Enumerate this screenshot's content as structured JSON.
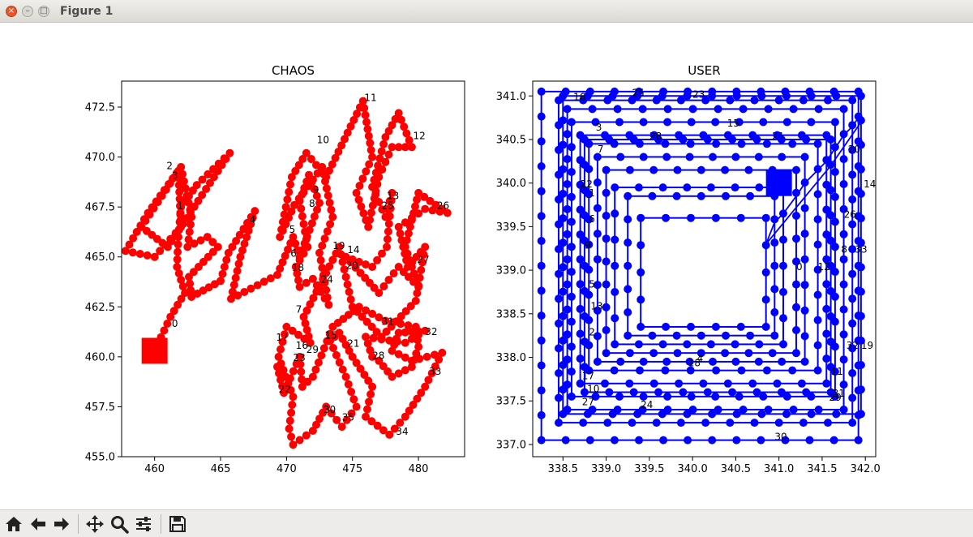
{
  "window": {
    "title": "Figure 1"
  },
  "toolbar": {
    "buttons": [
      {
        "name": "home-button",
        "icon": "home-icon"
      },
      {
        "name": "back-button",
        "icon": "arrow-left-icon"
      },
      {
        "name": "forward-button",
        "icon": "arrow-right-icon"
      },
      {
        "name": "pan-button",
        "icon": "move-icon"
      },
      {
        "name": "zoom-button",
        "icon": "magnifier-icon"
      },
      {
        "name": "configure-subplots-button",
        "icon": "sliders-icon"
      },
      {
        "name": "save-button",
        "icon": "floppy-disk-icon"
      }
    ]
  },
  "chart_data": [
    {
      "type": "line",
      "title": "CHAOS",
      "xlim": [
        457.5,
        483.5
      ],
      "ylim": [
        455.0,
        473.8
      ],
      "xticks": [
        "460",
        "465",
        "470",
        "475",
        "480"
      ],
      "yticks": [
        "455.0",
        "457.5",
        "460.0",
        "462.5",
        "465.0",
        "467.5",
        "470.0",
        "472.5"
      ],
      "color": "#ff0000",
      "marker": "circle",
      "start_marker": "square",
      "start": [
        460.0,
        460.3
      ],
      "path": [
        [
          460.0,
          460.3
        ],
        [
          461.2,
          462.0
        ],
        [
          462.3,
          463.2
        ],
        [
          461.7,
          464.5
        ],
        [
          461.8,
          466.0
        ],
        [
          462.0,
          467.5
        ],
        [
          463.2,
          468.6
        ],
        [
          465.7,
          470.2
        ],
        [
          463.3,
          467.8
        ],
        [
          461.0,
          465.5
        ],
        [
          459.0,
          466.5
        ],
        [
          461.8,
          469.3
        ],
        [
          462.0,
          466.5
        ],
        [
          460.0,
          465.0
        ],
        [
          457.8,
          465.3
        ],
        [
          459.5,
          467.2
        ],
        [
          462.0,
          469.5
        ],
        [
          462.8,
          467.0
        ],
        [
          462.5,
          465.5
        ],
        [
          464.0,
          466.0
        ],
        [
          464.8,
          465.5
        ],
        [
          462.6,
          464.0
        ],
        [
          462.8,
          463.0
        ],
        [
          465.0,
          463.8
        ],
        [
          465.6,
          465.2
        ],
        [
          467.6,
          467.3
        ],
        [
          466.5,
          465.0
        ],
        [
          465.8,
          462.9
        ],
        [
          469.3,
          464.1
        ],
        [
          470.5,
          466.0
        ],
        [
          471.0,
          465.0
        ],
        [
          472.5,
          467.7
        ],
        [
          471.7,
          469.1
        ],
        [
          471.0,
          467.8
        ],
        [
          471.6,
          465.5
        ],
        [
          470.7,
          464.5
        ],
        [
          471.0,
          463.5
        ],
        [
          472.0,
          463.9
        ],
        [
          473.2,
          462.6
        ],
        [
          472.5,
          465.2
        ],
        [
          473.5,
          467.0
        ],
        [
          472.7,
          469.5
        ],
        [
          470.6,
          467.6
        ],
        [
          469.5,
          466.0
        ],
        [
          470.4,
          469.0
        ],
        [
          471.5,
          470.2
        ],
        [
          473.0,
          469.0
        ],
        [
          475.8,
          472.8
        ],
        [
          476.5,
          470.0
        ],
        [
          475.3,
          468.2
        ],
        [
          476.2,
          466.5
        ],
        [
          477.0,
          469.0
        ],
        [
          478.0,
          470.5
        ],
        [
          479.5,
          470.5
        ],
        [
          478.5,
          472.2
        ],
        [
          477.5,
          471.0
        ],
        [
          476.5,
          468.5
        ],
        [
          477.5,
          467.0
        ],
        [
          478.0,
          468.2
        ],
        [
          477.6,
          465.5
        ],
        [
          476.5,
          464.5
        ],
        [
          474.5,
          465.0
        ],
        [
          475.6,
          464.2
        ],
        [
          477.0,
          463.2
        ],
        [
          478.5,
          464.5
        ],
        [
          480.0,
          463.5
        ],
        [
          479.0,
          465.5
        ],
        [
          480.0,
          468.2
        ],
        [
          482.2,
          467.2
        ],
        [
          480.5,
          467.4
        ],
        [
          478.5,
          466.5
        ],
        [
          479.2,
          464.5
        ],
        [
          480.5,
          465.5
        ],
        [
          479.8,
          462.8
        ],
        [
          477.2,
          461.0
        ],
        [
          475.0,
          462.5
        ],
        [
          474.0,
          465.5
        ],
        [
          473.0,
          464.2
        ],
        [
          471.3,
          462.0
        ],
        [
          471.8,
          460.7
        ],
        [
          470.0,
          461.5
        ],
        [
          469.4,
          460.0
        ],
        [
          470.5,
          458.0
        ],
        [
          470.2,
          456.4
        ],
        [
          470.5,
          455.6
        ],
        [
          472.0,
          456.3
        ],
        [
          473.0,
          457.5
        ],
        [
          474.2,
          456.5
        ],
        [
          475.3,
          457.5
        ],
        [
          474.5,
          459.0
        ],
        [
          473.3,
          460.8
        ],
        [
          474.0,
          461.2
        ],
        [
          475.0,
          460.0
        ],
        [
          476.5,
          458.5
        ],
        [
          476.0,
          457.0
        ],
        [
          477.8,
          456.1
        ],
        [
          479.0,
          457.0
        ],
        [
          480.5,
          458.5
        ],
        [
          481.8,
          460.2
        ],
        [
          479.5,
          459.8
        ],
        [
          478.0,
          460.3
        ],
        [
          478.5,
          461.2
        ],
        [
          480.5,
          461.3
        ],
        [
          479.0,
          460.7
        ],
        [
          476.0,
          461.0
        ],
        [
          476.5,
          460.0
        ],
        [
          477.0,
          459.8
        ],
        [
          478.0,
          459.0
        ],
        [
          479.5,
          459.5
        ],
        [
          480.0,
          460.5
        ],
        [
          479.8,
          461.5
        ],
        [
          477.5,
          461.8
        ],
        [
          475.5,
          462.5
        ],
        [
          473.5,
          461.5
        ],
        [
          472.0,
          459.0
        ],
        [
          471.2,
          458.5
        ],
        [
          471.0,
          460.0
        ],
        [
          469.8,
          458.2
        ],
        [
          469.3,
          459.5
        ]
      ],
      "labels": [
        {
          "text": "0",
          "at": [
            461.3,
            461.5
          ]
        },
        {
          "text": "1",
          "at": [
            461.7,
            467.4
          ]
        },
        {
          "text": "2",
          "at": [
            460.9,
            469.4
          ]
        },
        {
          "text": "3",
          "at": [
            461.3,
            468.9
          ]
        },
        {
          "text": "4",
          "at": [
            467.2,
            466.7
          ]
        },
        {
          "text": "5",
          "at": [
            470.2,
            466.2
          ]
        },
        {
          "text": "6",
          "at": [
            470.3,
            465.0
          ]
        },
        {
          "text": "7",
          "at": [
            470.7,
            462.2
          ]
        },
        {
          "text": "8",
          "at": [
            471.7,
            467.5
          ]
        },
        {
          "text": "9",
          "at": [
            472.0,
            468.2
          ]
        },
        {
          "text": "10",
          "at": [
            472.3,
            470.7
          ]
        },
        {
          "text": "11",
          "at": [
            475.9,
            472.8
          ]
        },
        {
          "text": "12",
          "at": [
            479.6,
            470.9
          ]
        },
        {
          "text": "13",
          "at": [
            477.6,
            467.9
          ]
        },
        {
          "text": "14",
          "at": [
            474.6,
            465.2
          ]
        },
        {
          "text": "15",
          "at": [
            472.9,
            460.9
          ]
        },
        {
          "text": "16",
          "at": [
            470.7,
            460.4
          ]
        },
        {
          "text": "17",
          "at": [
            469.2,
            460.8
          ]
        },
        {
          "text": "18",
          "at": [
            470.4,
            464.3
          ]
        },
        {
          "text": "19",
          "at": [
            473.5,
            465.4
          ]
        },
        {
          "text": "20",
          "at": [
            474.5,
            464.4
          ]
        },
        {
          "text": "21",
          "at": [
            474.6,
            460.5
          ]
        },
        {
          "text": "22",
          "at": [
            469.4,
            458.2
          ]
        },
        {
          "text": "23",
          "at": [
            470.5,
            459.8
          ]
        },
        {
          "text": "24",
          "at": [
            472.6,
            463.7
          ]
        },
        {
          "text": "25",
          "at": [
            477.2,
            467.4
          ]
        },
        {
          "text": "26",
          "at": [
            481.4,
            467.4
          ]
        },
        {
          "text": "27",
          "at": [
            479.9,
            464.7
          ]
        },
        {
          "text": "28",
          "at": [
            476.5,
            459.9
          ]
        },
        {
          "text": "29",
          "at": [
            471.5,
            460.2
          ]
        },
        {
          "text": "30",
          "at": [
            472.8,
            457.2
          ]
        },
        {
          "text": "31",
          "at": [
            477.2,
            461.6
          ]
        },
        {
          "text": "32",
          "at": [
            480.5,
            461.1
          ]
        },
        {
          "text": "33",
          "at": [
            480.8,
            459.1
          ]
        },
        {
          "text": "34",
          "at": [
            478.3,
            456.1
          ]
        },
        {
          "text": "35",
          "at": [
            474.2,
            456.8
          ]
        }
      ]
    },
    {
      "type": "line",
      "title": "USER",
      "xlim": [
        338.15,
        342.12
      ],
      "ylim": [
        336.86,
        341.17
      ],
      "xticks": [
        "338.5",
        "339.0",
        "339.5",
        "340.0",
        "340.5",
        "341.0",
        "341.5",
        "342.0"
      ],
      "yticks": [
        "337.0",
        "337.5",
        "338.0",
        "338.5",
        "339.0",
        "339.5",
        "340.0",
        "340.5",
        "341.0"
      ],
      "color": "#0000ff",
      "marker": "circle",
      "start_marker": "square",
      "start": [
        341.0,
        340.0
      ],
      "loops": [
        {
          "x0": 338.25,
          "x1": 341.92,
          "y0": 337.05,
          "y1": 341.05
        },
        {
          "x0": 338.45,
          "x1": 341.85,
          "y0": 337.25,
          "y1": 340.95
        },
        {
          "x0": 338.55,
          "x1": 341.75,
          "y0": 337.4,
          "y1": 340.85
        },
        {
          "x0": 338.6,
          "x1": 341.65,
          "y0": 337.55,
          "y1": 340.7
        },
        {
          "x0": 338.7,
          "x1": 341.55,
          "y0": 337.7,
          "y1": 340.55
        },
        {
          "x0": 338.8,
          "x1": 341.45,
          "y0": 337.85,
          "y1": 340.45
        },
        {
          "x0": 338.9,
          "x1": 341.3,
          "y0": 337.95,
          "y1": 340.3
        },
        {
          "x0": 339.0,
          "x1": 341.2,
          "y0": 338.05,
          "y1": 340.15
        },
        {
          "x0": 339.1,
          "x1": 341.05,
          "y0": 338.15,
          "y1": 339.95
        },
        {
          "x0": 339.25,
          "x1": 340.95,
          "y0": 338.25,
          "y1": 339.85
        },
        {
          "x0": 339.4,
          "x1": 340.85,
          "y0": 338.35,
          "y1": 339.6
        },
        {
          "x0": 338.75,
          "x1": 341.6,
          "y0": 337.6,
          "y1": 340.5
        },
        {
          "x0": 338.5,
          "x1": 341.95,
          "y0": 337.35,
          "y1": 341.0
        }
      ],
      "labels": [
        {
          "text": "0",
          "at": [
            341.2,
            339.0
          ]
        },
        {
          "text": "1",
          "at": [
            338.8,
            339.85
          ]
        },
        {
          "text": "2",
          "at": [
            338.8,
            338.25
          ]
        },
        {
          "text": "3",
          "at": [
            338.88,
            340.6
          ]
        },
        {
          "text": "4",
          "at": [
            340.05,
            337.95
          ]
        },
        {
          "text": "5",
          "at": [
            338.8,
            338.8
          ]
        },
        {
          "text": "6",
          "at": [
            338.8,
            339.55
          ]
        },
        {
          "text": "7",
          "at": [
            338.9,
            340.35
          ]
        },
        {
          "text": "8",
          "at": [
            341.72,
            339.2
          ]
        },
        {
          "text": "9",
          "at": [
            338.75,
            339.25
          ]
        },
        {
          "text": "10",
          "at": [
            338.78,
            337.6
          ]
        },
        {
          "text": "11",
          "at": [
            341.6,
            337.8
          ]
        },
        {
          "text": "12",
          "at": [
            341.45,
            339.0
          ]
        },
        {
          "text": "13",
          "at": [
            338.82,
            338.55
          ]
        },
        {
          "text": "14",
          "at": [
            341.98,
            339.95
          ]
        },
        {
          "text": "15",
          "at": [
            340.4,
            340.65
          ]
        },
        {
          "text": "16",
          "at": [
            338.62,
            340.95
          ]
        },
        {
          "text": "17",
          "at": [
            338.72,
            337.75
          ]
        },
        {
          "text": "18",
          "at": [
            339.95,
            337.9
          ]
        },
        {
          "text": "19",
          "at": [
            341.95,
            338.1
          ]
        },
        {
          "text": "20",
          "at": [
            341.8,
            340.35
          ]
        },
        {
          "text": "21",
          "at": [
            340.92,
            340.5
          ]
        },
        {
          "text": "22",
          "at": [
            338.7,
            339.95
          ]
        },
        {
          "text": "23",
          "at": [
            340.0,
            340.98
          ]
        },
        {
          "text": "24",
          "at": [
            339.4,
            337.42
          ]
        },
        {
          "text": "25",
          "at": [
            339.3,
            341.0
          ]
        },
        {
          "text": "26",
          "at": [
            341.75,
            339.6
          ]
        },
        {
          "text": "27",
          "at": [
            338.72,
            337.45
          ]
        },
        {
          "text": "28",
          "at": [
            339.5,
            340.5
          ]
        },
        {
          "text": "29",
          "at": [
            341.58,
            337.5
          ]
        },
        {
          "text": "30",
          "at": [
            340.95,
            337.05
          ]
        },
        {
          "text": "31",
          "at": [
            341.62,
            337.55
          ]
        },
        {
          "text": "32",
          "at": [
            341.78,
            338.1
          ]
        },
        {
          "text": "33",
          "at": [
            341.88,
            339.2
          ]
        }
      ]
    }
  ]
}
